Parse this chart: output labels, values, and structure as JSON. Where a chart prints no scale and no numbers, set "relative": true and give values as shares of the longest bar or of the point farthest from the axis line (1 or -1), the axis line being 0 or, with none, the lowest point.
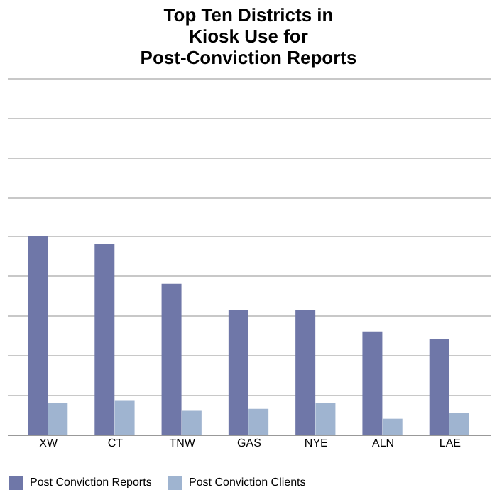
{
  "chart_data": {
    "type": "bar",
    "title": "Top Ten Districts in\nKiosk Use for\nPost-Conviction Reports",
    "categories": [
      "XW",
      "CT",
      "TNW",
      "GAS",
      "NYE",
      "ALN",
      "LAE"
    ],
    "relative": true,
    "grid": "y",
    "legend": "bottom",
    "series": [
      {
        "name": "Post Conviction Reports",
        "color": "#6f77a8",
        "values": [
          1,
          0.96,
          0.76,
          0.63,
          0.63,
          0.52,
          0.48
        ]
      },
      {
        "name": "Post Conviction Clients",
        "color": "#9fb4d0",
        "values": [
          0.16,
          0.17,
          0.12,
          0.13,
          0.16,
          0.08,
          0.11
        ]
      }
    ]
  }
}
